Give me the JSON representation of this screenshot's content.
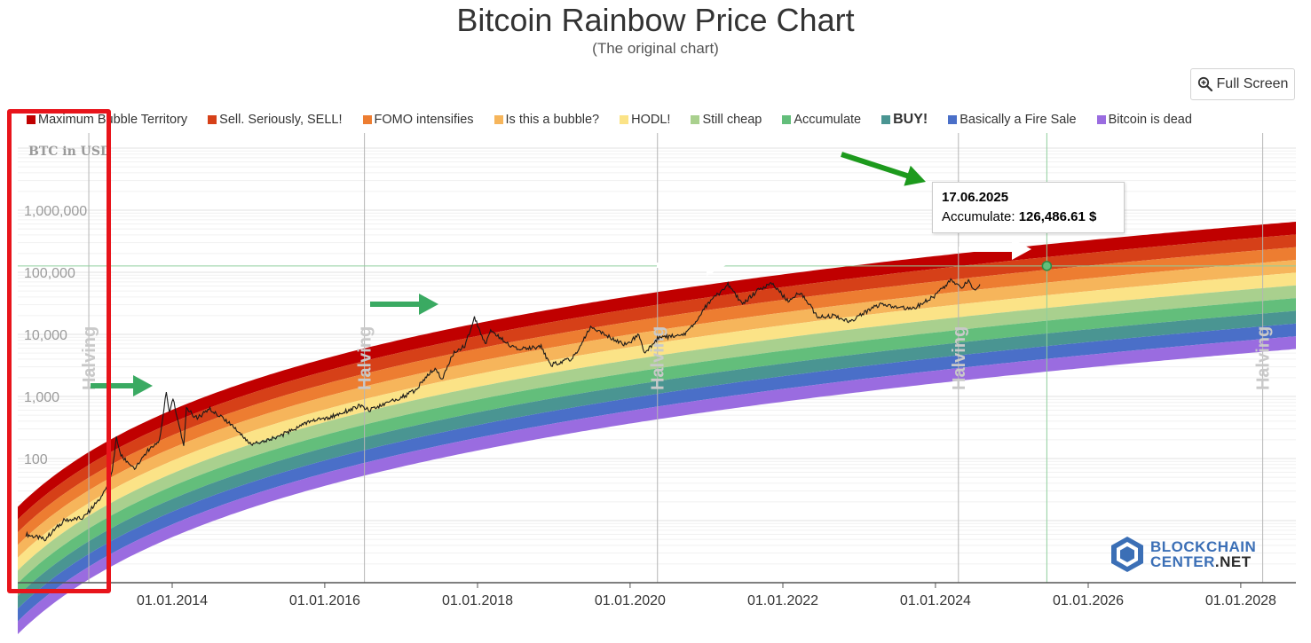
{
  "header": {
    "title": "Bitcoin Rainbow Price Chart",
    "subtitle": "(The original chart)",
    "fullscreen_label": "Full Screen"
  },
  "tooltip": {
    "date": "17.06.2025",
    "series_label": "Accumulate:",
    "value": "126,486.61 $"
  },
  "logo": {
    "line1": "BLOCKCHAIN",
    "line2a": "CENTER",
    "line2b": ".NET"
  },
  "chart_data": {
    "type": "line",
    "title": "Bitcoin Rainbow Price Chart",
    "subtitle": "(The original chart)",
    "ylabel": "BTC in USD",
    "yscale": "log",
    "ylim": [
      1,
      10000000
    ],
    "y_ticks": [
      {
        "value": 1000000,
        "label": "1,000,000"
      },
      {
        "value": 100000,
        "label": "100,000"
      },
      {
        "value": 10000,
        "label": "10,000"
      },
      {
        "value": 1000,
        "label": "1,000"
      },
      {
        "value": 100,
        "label": "100"
      }
    ],
    "x_range": [
      "2012-02-01",
      "2028-09-01"
    ],
    "x_ticks": [
      "01.01.2014",
      "01.01.2016",
      "01.01.2018",
      "01.01.2020",
      "01.01.2022",
      "01.01.2024",
      "01.01.2026",
      "01.01.2028"
    ],
    "grid": true,
    "legend_position": "top",
    "bands": [
      {
        "name": "Maximum Bubble Territory",
        "color": "#c00000"
      },
      {
        "name": "Sell. Seriously, SELL!",
        "color": "#d64018"
      },
      {
        "name": "FOMO intensifies",
        "color": "#ed7d31"
      },
      {
        "name": "Is this a bubble?",
        "color": "#f6b55b"
      },
      {
        "name": "HODL!",
        "color": "#fbe387"
      },
      {
        "name": "Still cheap",
        "color": "#a9d08e"
      },
      {
        "name": "Accumulate",
        "color": "#63be7b"
      },
      {
        "name": "BUY!",
        "color": "#4a9592"
      },
      {
        "name": "Basically a Fire Sale",
        "color": "#4a6fc8"
      },
      {
        "name": "Bitcoin is dead",
        "color": "#9a6ce0"
      }
    ],
    "halvings": [
      {
        "date": "2012-11-28",
        "label": "Halving"
      },
      {
        "date": "2016-07-09",
        "label": "Halving"
      },
      {
        "date": "2020-05-11",
        "label": "Halving"
      },
      {
        "date": "2024-04-20",
        "label": "Halving"
      },
      {
        "date": "2028-04-15",
        "label": "Halving"
      }
    ],
    "highlight": {
      "date": "2025-06-17",
      "series": "Accumulate",
      "value": 126486.61
    },
    "price_series": {
      "name": "BTC price",
      "points": [
        [
          "2012-02-01",
          6
        ],
        [
          "2012-05-01",
          5
        ],
        [
          "2012-08-01",
          10
        ],
        [
          "2012-11-01",
          11
        ],
        [
          "2013-02-01",
          25
        ],
        [
          "2013-03-20",
          60
        ],
        [
          "2013-04-09",
          230
        ],
        [
          "2013-05-01",
          110
        ],
        [
          "2013-07-05",
          70
        ],
        [
          "2013-09-01",
          130
        ],
        [
          "2013-11-01",
          200
        ],
        [
          "2013-12-04",
          1150
        ],
        [
          "2013-12-18",
          530
        ],
        [
          "2014-01-05",
          950
        ],
        [
          "2014-02-25",
          160
        ],
        [
          "2014-03-10",
          640
        ],
        [
          "2014-05-01",
          440
        ],
        [
          "2014-07-01",
          640
        ],
        [
          "2014-10-01",
          380
        ],
        [
          "2015-01-14",
          170
        ],
        [
          "2015-06-01",
          230
        ],
        [
          "2015-11-04",
          420
        ],
        [
          "2016-01-01",
          430
        ],
        [
          "2016-06-15",
          700
        ],
        [
          "2016-08-01",
          600
        ],
        [
          "2016-12-31",
          960
        ],
        [
          "2017-03-01",
          1200
        ],
        [
          "2017-06-12",
          2900
        ],
        [
          "2017-07-15",
          1900
        ],
        [
          "2017-09-01",
          4700
        ],
        [
          "2017-11-01",
          6500
        ],
        [
          "2017-12-17",
          19500
        ],
        [
          "2018-02-06",
          6900
        ],
        [
          "2018-03-05",
          11500
        ],
        [
          "2018-06-29",
          5900
        ],
        [
          "2018-11-01",
          6300
        ],
        [
          "2018-12-15",
          3200
        ],
        [
          "2019-04-01",
          4100
        ],
        [
          "2019-06-26",
          13000
        ],
        [
          "2019-09-01",
          10000
        ],
        [
          "2019-12-17",
          6700
        ],
        [
          "2020-02-12",
          10300
        ],
        [
          "2020-03-13",
          4800
        ],
        [
          "2020-05-11",
          8700
        ],
        [
          "2020-07-15",
          9200
        ],
        [
          "2020-10-01",
          10700
        ],
        [
          "2020-12-31",
          29000
        ],
        [
          "2021-04-13",
          63500
        ],
        [
          "2021-06-22",
          31000
        ],
        [
          "2021-09-06",
          52000
        ],
        [
          "2021-11-10",
          68000
        ],
        [
          "2022-01-22",
          35000
        ],
        [
          "2022-03-28",
          47500
        ],
        [
          "2022-06-18",
          19000
        ],
        [
          "2022-09-01",
          20000
        ],
        [
          "2022-11-21",
          15800
        ],
        [
          "2023-02-01",
          23000
        ],
        [
          "2023-04-14",
          30500
        ],
        [
          "2023-09-11",
          25000
        ],
        [
          "2023-12-31",
          42500
        ],
        [
          "2024-03-14",
          73000
        ],
        [
          "2024-05-01",
          58000
        ],
        [
          "2024-06-07",
          71000
        ],
        [
          "2024-07-05",
          54000
        ],
        [
          "2024-08-01",
          64000
        ]
      ]
    },
    "annotations": [
      {
        "type": "arrow",
        "color": "green",
        "near": "2013-12"
      },
      {
        "type": "arrow",
        "color": "green",
        "near": "2017-08"
      },
      {
        "type": "arrow",
        "color": "white",
        "near": "2021-01"
      },
      {
        "type": "arrow",
        "color": "green",
        "near": "2024-08"
      },
      {
        "type": "arrow",
        "color": "white",
        "near": "2025-03"
      },
      {
        "type": "highlight-box",
        "color": "red",
        "region": "y-axis"
      }
    ]
  }
}
